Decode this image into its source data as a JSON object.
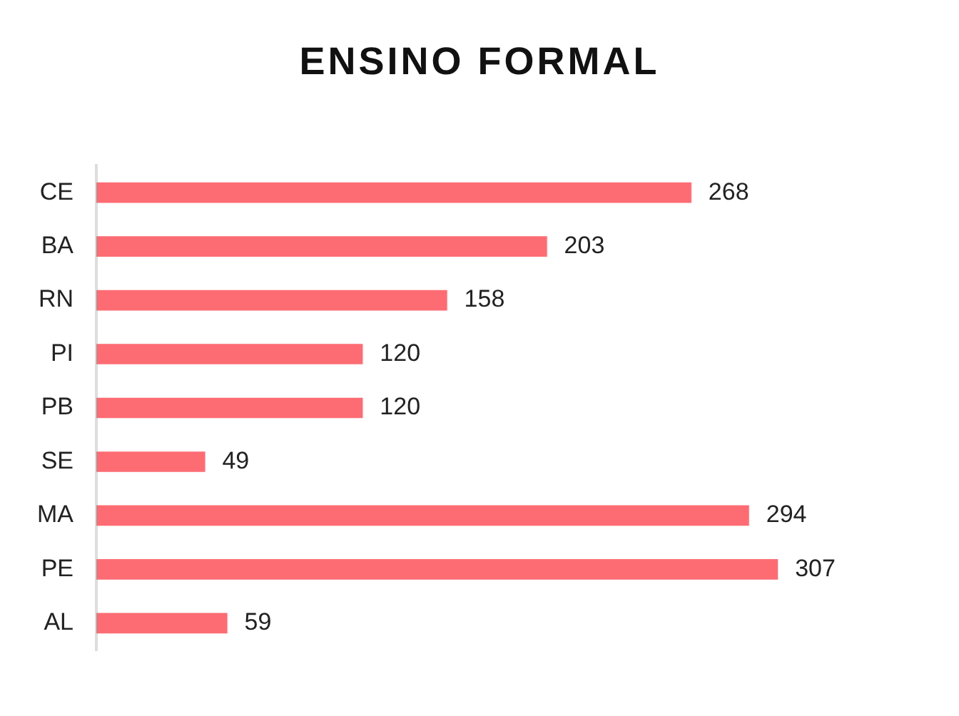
{
  "chart_data": {
    "type": "bar",
    "orientation": "horizontal",
    "title": "ENSINO FORMAL",
    "categories": [
      "CE",
      "BA",
      "RN",
      "PI",
      "PB",
      "SE",
      "MA",
      "PE",
      "AL"
    ],
    "values": [
      268,
      203,
      158,
      120,
      120,
      49,
      294,
      307,
      59
    ],
    "color": "#fd6b73",
    "data_labels": true,
    "grid": false,
    "legend": false,
    "tick_labels": "y"
  }
}
